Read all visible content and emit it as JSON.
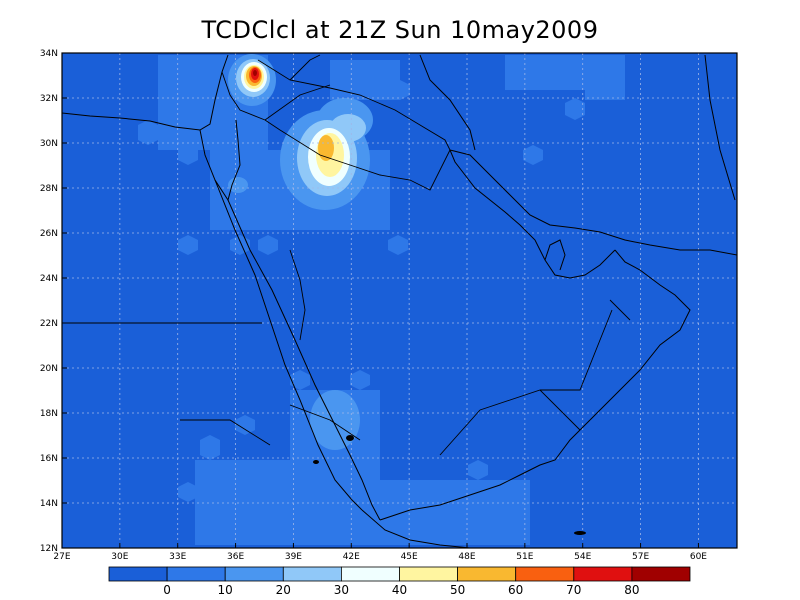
{
  "title": "TCDClcl at 21Z Sun 10may2009",
  "map": {
    "lon_range": [
      27,
      62
    ],
    "lat_range": [
      12,
      34
    ],
    "x_ticks": [
      "27E",
      "30E",
      "33E",
      "36E",
      "39E",
      "42E",
      "45E",
      "48E",
      "51E",
      "54E",
      "57E",
      "60E"
    ],
    "y_ticks": [
      "12N",
      "14N",
      "16N",
      "18N",
      "20N",
      "22N",
      "24N",
      "26N",
      "28N",
      "30N",
      "32N",
      "34N"
    ],
    "background_color": "#1a5fd8",
    "colors": {
      "ocean_base": "#1a5fd8",
      "land_line": "#000000",
      "grid": "#9fb6e8"
    }
  },
  "colorbar": {
    "labels": [
      "0",
      "10",
      "20",
      "30",
      "40",
      "50",
      "60",
      "70",
      "80"
    ],
    "colors": [
      "#1a5fd8",
      "#2e78e8",
      "#4a96f0",
      "#90c8f8",
      "#f0ffff",
      "#fff5a0",
      "#f9b830",
      "#f96010",
      "#e01010",
      "#a00000"
    ]
  }
}
